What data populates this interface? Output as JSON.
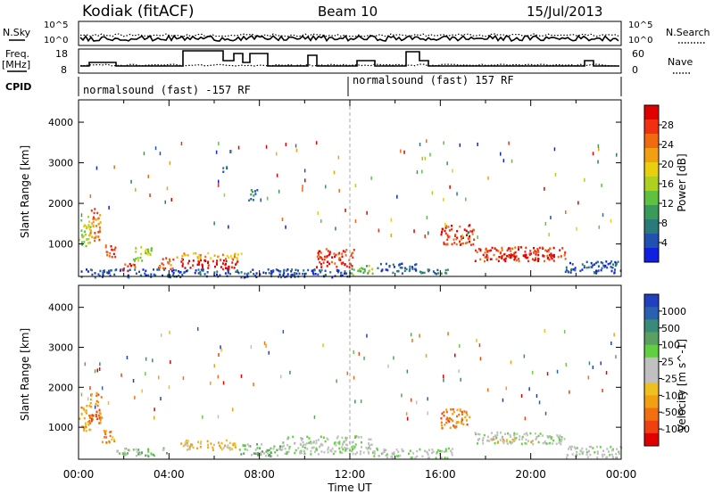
{
  "header": {
    "station": "Kodiak (fitACF)",
    "beam": "Beam 10",
    "date": "15/Jul/2013"
  },
  "top_panels": {
    "nsky_label": "N.Sky",
    "nsky_ticks": [
      "10^5",
      "10^0"
    ],
    "nsearch_label": "N.Search",
    "nsearch_ticks": [
      "10^5",
      "10^0"
    ],
    "freq_label": "Freq.",
    "freq_unit": "[MHz]",
    "freq_ticks": [
      "18",
      "8"
    ],
    "nave_label": "Nave",
    "nave_ticks": [
      "60",
      "0"
    ],
    "cpid_label": "CPID",
    "cpid_segments": [
      {
        "text": "normalsound (fast) -157 RF",
        "start_hour": 0,
        "end_hour": 12
      },
      {
        "text": "normalsound (fast) 157 RF",
        "start_hour": 12,
        "end_hour": 24
      }
    ]
  },
  "chart_data": [
    {
      "type": "heatmap",
      "panel": "power",
      "ylabel": "Slant Range [km]",
      "y_ticks": [
        "4000",
        "3000",
        "2000",
        "1000"
      ],
      "y_tick_values": [
        4000,
        3000,
        2000,
        1000
      ],
      "ylim": [
        200,
        4550
      ],
      "xlim": [
        0,
        24
      ],
      "colorbar": {
        "label": "Power [dB]",
        "ticks": [
          "28",
          "24",
          "20",
          "16",
          "12",
          "8",
          "4"
        ],
        "colors": [
          "#e00000",
          "#f03010",
          "#f06a10",
          "#f0a010",
          "#e8d010",
          "#b0d020",
          "#60c040",
          "#3a9a5a",
          "#2a7a7a",
          "#2050b0",
          "#1020e0"
        ]
      },
      "blobs": [
        {
          "x0": 0.0,
          "x1": 0.5,
          "y0": 900,
          "y1": 1700,
          "c": 5
        },
        {
          "x0": 0.5,
          "x1": 1.0,
          "y0": 1100,
          "y1": 1900,
          "c": 2
        },
        {
          "x0": 1.0,
          "x1": 1.6,
          "y0": 700,
          "y1": 1000,
          "c": 1
        },
        {
          "x0": 1.8,
          "x1": 2.5,
          "y0": 350,
          "y1": 550,
          "c": 1
        },
        {
          "x0": 2.4,
          "x1": 3.2,
          "y0": 600,
          "y1": 1000,
          "c": 5
        },
        {
          "x0": 3.5,
          "x1": 4.2,
          "y0": 400,
          "y1": 700,
          "c": 2
        },
        {
          "x0": 4.5,
          "x1": 7.0,
          "y0": 400,
          "y1": 650,
          "c": 0
        },
        {
          "x0": 4.3,
          "x1": 7.2,
          "y0": 650,
          "y1": 800,
          "c": 3
        },
        {
          "x0": 6.3,
          "x1": 6.6,
          "y0": 2800,
          "y1": 2950,
          "c": 8
        },
        {
          "x0": 7.5,
          "x1": 7.9,
          "y0": 2100,
          "y1": 2400,
          "c": 8
        },
        {
          "x0": 10.5,
          "x1": 12.2,
          "y0": 450,
          "y1": 900,
          "c": 1
        },
        {
          "x0": 12.0,
          "x1": 13.0,
          "y0": 250,
          "y1": 500,
          "c": 6
        },
        {
          "x0": 13.2,
          "x1": 15.0,
          "y0": 300,
          "y1": 550,
          "c": 9
        },
        {
          "x0": 15.0,
          "x1": 16.5,
          "y0": 250,
          "y1": 400,
          "c": 8
        },
        {
          "x0": 16.0,
          "x1": 17.5,
          "y0": 1000,
          "y1": 1500,
          "c": 1
        },
        {
          "x0": 17.5,
          "x1": 21.5,
          "y0": 600,
          "y1": 950,
          "c": 1
        },
        {
          "x0": 18.5,
          "x1": 21.0,
          "y0": 650,
          "y1": 800,
          "c": 0
        },
        {
          "x0": 21.5,
          "x1": 24.0,
          "y0": 300,
          "y1": 600,
          "c": 9
        },
        {
          "x0": 0.0,
          "x1": 12.0,
          "y0": 200,
          "y1": 400,
          "c": 9
        }
      ]
    },
    {
      "type": "heatmap",
      "panel": "velocity",
      "ylabel": "Slant Range [km]",
      "xlabel": "Time UT",
      "x_ticks": [
        "00:00",
        "04:00",
        "08:00",
        "12:00",
        "16:00",
        "20:00",
        "00:00"
      ],
      "x_tick_values": [
        0,
        4,
        8,
        12,
        16,
        20,
        24
      ],
      "y_ticks": [
        "4000",
        "3000",
        "2000",
        "1000"
      ],
      "y_tick_values": [
        4000,
        3000,
        2000,
        1000
      ],
      "ylim": [
        200,
        4550
      ],
      "xlim": [
        0,
        24
      ],
      "colorbar": {
        "label": "Velocity [m s^-1]",
        "ticks": [
          "1000",
          "500",
          "100",
          "25",
          "-25",
          "-100",
          "-500",
          "-1000"
        ],
        "colors": [
          "#2040c0",
          "#2a60b0",
          "#3a8a7a",
          "#5aa060",
          "#60d040",
          "#c0c0c0",
          "#c0c0c0",
          "#f0c020",
          "#f0a010",
          "#f07010",
          "#f04010",
          "#e00000"
        ]
      },
      "blobs": [
        {
          "x0": 0.0,
          "x1": 0.6,
          "y0": 900,
          "y1": 1600,
          "c": 8
        },
        {
          "x0": 0.5,
          "x1": 1.0,
          "y0": 1100,
          "y1": 1900,
          "c": 9
        },
        {
          "x0": 1.0,
          "x1": 1.6,
          "y0": 600,
          "y1": 950,
          "c": 8
        },
        {
          "x0": 1.6,
          "x1": 4.0,
          "y0": 300,
          "y1": 500,
          "c": 4
        },
        {
          "x0": 4.5,
          "x1": 7.0,
          "y0": 450,
          "y1": 700,
          "c": 7
        },
        {
          "x0": 7.0,
          "x1": 9.0,
          "y0": 300,
          "y1": 600,
          "c": 4
        },
        {
          "x0": 9.0,
          "x1": 13.0,
          "y0": 350,
          "y1": 800,
          "c": 5
        },
        {
          "x0": 13.0,
          "x1": 16.5,
          "y0": 250,
          "y1": 500,
          "c": 5
        },
        {
          "x0": 16.0,
          "x1": 17.3,
          "y0": 1000,
          "y1": 1500,
          "c": 9
        },
        {
          "x0": 17.5,
          "x1": 21.5,
          "y0": 600,
          "y1": 900,
          "c": 5
        },
        {
          "x0": 18.0,
          "x1": 20.0,
          "y0": 650,
          "y1": 750,
          "c": 7
        },
        {
          "x0": 21.5,
          "x1": 24.0,
          "y0": 250,
          "y1": 550,
          "c": 5
        }
      ]
    }
  ]
}
